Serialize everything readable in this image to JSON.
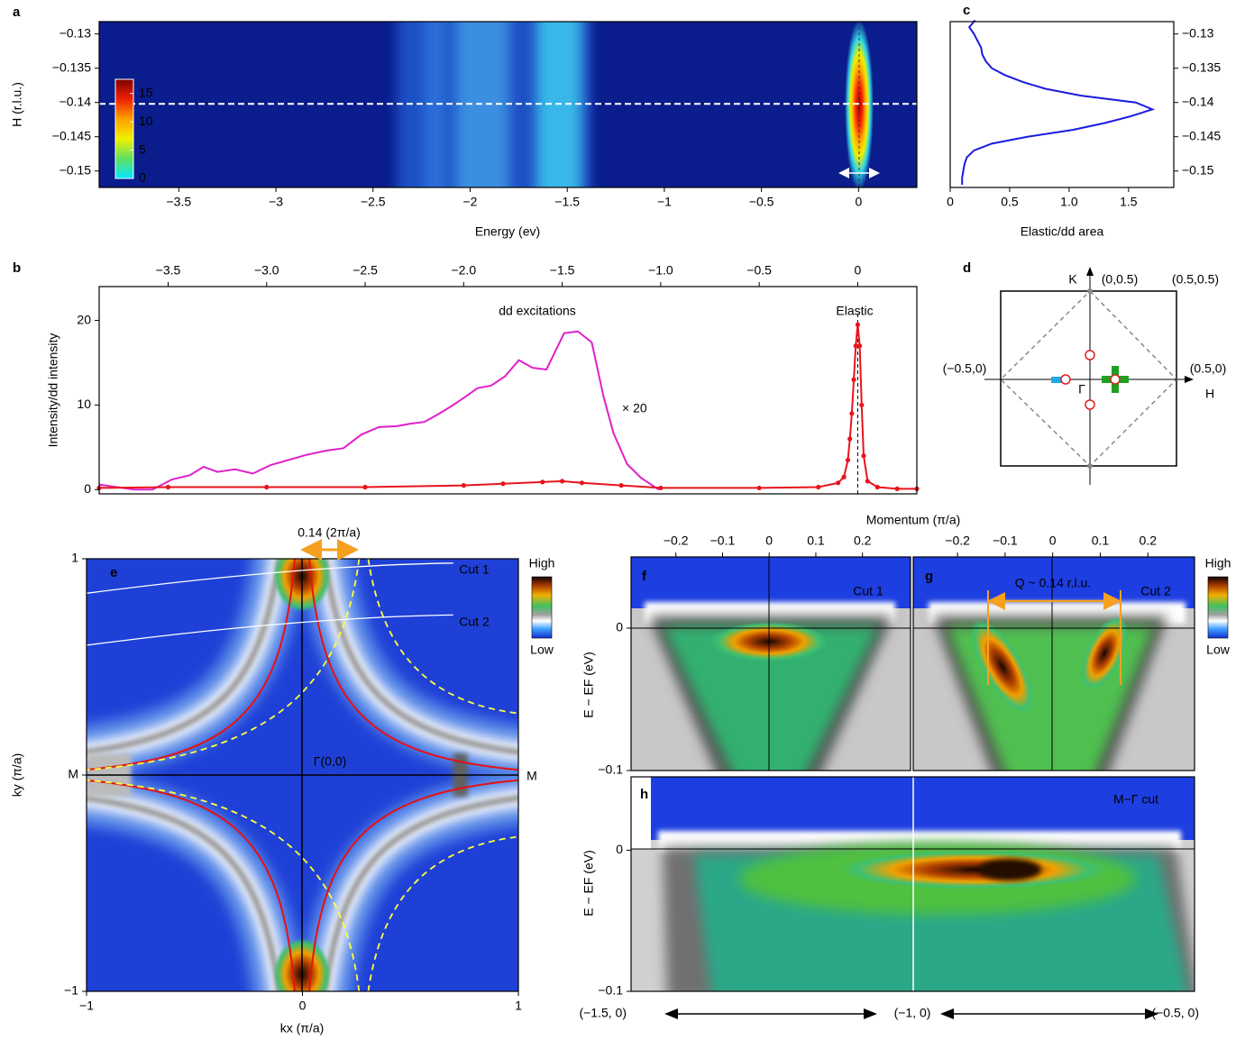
{
  "chart_data": [
    {
      "panel_label": "a",
      "type": "heatmap",
      "xlabel": "Energy (ev)",
      "ylabel": "H (r.l.u.)",
      "xlim": [
        -3.91,
        0.3
      ],
      "xticks": [
        {
          "value": -3.5,
          "label": "−3.5"
        },
        {
          "value": -3,
          "label": "−3"
        },
        {
          "value": -2.5,
          "label": "−2.5"
        },
        {
          "value": -2,
          "label": "−2"
        },
        {
          "value": -1.5,
          "label": "−1.5"
        },
        {
          "value": -1,
          "label": "−1"
        },
        {
          "value": -0.5,
          "label": "−0.5"
        },
        0
      ],
      "ylim": [
        -0.1524,
        -0.1282
      ],
      "yticks": [
        {
          "value": -0.13,
          "label": "−0.13"
        },
        {
          "value": -0.135,
          "label": "−0.135"
        },
        {
          "value": -0.14,
          "label": "−0.14"
        },
        {
          "value": -0.145,
          "label": "−0.145"
        },
        {
          "value": -0.15,
          "label": "−0.15"
        }
      ],
      "reference_line": -0.1402,
      "colorbar": {
        "lim": [
          0,
          17.5
        ],
        "ticks": [
          0,
          5,
          10,
          15
        ]
      }
    },
    {
      "panel_label": "b",
      "type": "line",
      "ylabel": "Intensity/dd intensity",
      "annotations": [
        "dd excitations",
        "Elastic"
      ],
      "xlim": [
        -3.85,
        0.3
      ],
      "xticks": [
        {
          "value": -3.5,
          "label": "−3.5"
        },
        {
          "value": -3,
          "label": "−3.0"
        },
        {
          "value": -2.5,
          "label": "−2.5"
        },
        {
          "value": -2,
          "label": "−2.0"
        },
        {
          "value": -1.5,
          "label": "−1.5"
        },
        {
          "value": -1,
          "label": "−1.0"
        },
        {
          "value": -0.5,
          "label": "−0.5"
        },
        0
      ],
      "ylim": [
        -0.5,
        24
      ],
      "yticks": [
        0,
        10,
        20
      ],
      "series": [
        {
          "name": "× 20",
          "color": "#e020c8",
          "x": [
            -3.85,
            -3.76,
            -3.67,
            -3.58,
            -3.48,
            -3.39,
            -3.32,
            -3.25,
            -3.16,
            -3.07,
            -2.98,
            -2.89,
            -2.8,
            -2.7,
            -2.61,
            -2.52,
            -2.43,
            -2.34,
            -2.27,
            -2.2,
            -2.13,
            -2.06,
            -1.99,
            -1.93,
            -1.86,
            -1.79,
            -1.72,
            -1.65,
            -1.58,
            -1.49,
            -1.42,
            -1.35,
            -1.29,
            -1.24,
            -1.17,
            -1.1,
            -1.01
          ],
          "values": [
            0.6,
            0.3,
            0,
            0,
            1.2,
            1.7,
            2.7,
            2.1,
            2.4,
            1.9,
            2.9,
            3.5,
            4.1,
            4.6,
            4.9,
            6.5,
            7.4,
            7.5,
            7.8,
            8,
            8.9,
            9.9,
            11,
            12,
            12.3,
            13.4,
            15.3,
            14.4,
            14.2,
            18.5,
            18.7,
            17.4,
            11,
            6.7,
            3,
            1.4,
            0
          ]
        },
        {
          "color": "#e8141c",
          "markers": true,
          "x": [
            -3.85,
            -3.5,
            -3,
            -2.5,
            -2,
            -1.8,
            -1.6,
            -1.5,
            -1.4,
            -1.2,
            -1,
            -0.5,
            -0.2,
            -0.1,
            -0.07,
            -0.05,
            -0.04,
            -0.03,
            -0.02,
            -0.01,
            0,
            0.01,
            0.02,
            0.03,
            0.05,
            0.1,
            0.2,
            0.3
          ],
          "values": [
            0.2,
            0.3,
            0.3,
            0.3,
            0.5,
            0.7,
            0.9,
            1,
            0.8,
            0.5,
            0.2,
            0.2,
            0.3,
            0.8,
            1.5,
            3.5,
            6,
            9,
            13,
            17,
            19.5,
            17,
            10,
            4,
            1,
            0.3,
            0.1,
            0.1
          ]
        }
      ]
    },
    {
      "panel_label": "c",
      "type": "line",
      "orientation": "horizontal",
      "xlabel": "Elastic/dd area",
      "color": "#1a1ae0",
      "xlim": [
        0,
        1.88
      ],
      "xticks": [
        0,
        0.5,
        {
          "value": 1,
          "label": "1.0"
        },
        1.5
      ],
      "ylim": [
        -0.1524,
        -0.1282
      ],
      "yticks": [
        {
          "value": -0.13,
          "label": "−0.13"
        },
        {
          "value": -0.135,
          "label": "−0.135"
        },
        {
          "value": -0.14,
          "label": "−0.14"
        },
        {
          "value": -0.145,
          "label": "−0.145"
        },
        {
          "value": -0.15,
          "label": "−0.15"
        }
      ],
      "y": [
        -0.152,
        -0.151,
        -0.15,
        -0.149,
        -0.148,
        -0.147,
        -0.146,
        -0.145,
        -0.144,
        -0.143,
        -0.142,
        -0.141,
        -0.14,
        -0.139,
        -0.138,
        -0.137,
        -0.136,
        -0.135,
        -0.134,
        -0.133,
        -0.132,
        -0.131,
        -0.13,
        -0.129,
        -0.128
      ],
      "values": [
        0.1,
        0.1,
        0.11,
        0.12,
        0.14,
        0.2,
        0.35,
        0.65,
        1.03,
        1.3,
        1.52,
        1.7,
        1.56,
        1.1,
        0.8,
        0.61,
        0.46,
        0.35,
        0.3,
        0.27,
        0.26,
        0.23,
        0.2,
        0.16,
        0.21
      ]
    },
    {
      "panel_label": "e",
      "type": "heatmap",
      "xlabel": "kx (π/a)",
      "ylabel": "ky (π/a)",
      "xlim": [
        -1,
        1
      ],
      "xticks": [
        {
          "value": -1,
          "label": "−1"
        },
        0,
        1
      ],
      "ylim": [
        -1,
        1
      ],
      "yticks": [
        {
          "value": -1,
          "label": "−1"
        },
        {
          "value": 0,
          "label": "M"
        },
        1
      ],
      "annotations": [
        "0.14 (2π/a)",
        "Cut 1",
        "Cut 2",
        "Γ(0,0)",
        "M"
      ],
      "colorbar_labels": [
        "High",
        "Low"
      ]
    },
    {
      "panel_label": "f",
      "type": "heatmap",
      "xlabel": "Momentum (π/a)",
      "ylabel": "E − EF (eV)",
      "xlim": [
        -0.296,
        0.303
      ],
      "xticks": [
        {
          "value": -0.2,
          "label": "−0.2"
        },
        {
          "value": -0.1,
          "label": "−0.1"
        },
        0,
        0.1,
        0.2
      ],
      "ylim": [
        -0.1,
        0.05
      ],
      "yticks": [
        0,
        {
          "value": -0.1,
          "label": "−0.1"
        }
      ],
      "annotations": [
        "Cut 1"
      ]
    },
    {
      "panel_label": "g",
      "type": "heatmap",
      "xlim": [
        -0.293,
        0.298
      ],
      "xticks": [
        {
          "value": -0.2,
          "label": "−0.2"
        },
        {
          "value": -0.1,
          "label": "−0.1"
        },
        0,
        0.1,
        0.2
      ],
      "annotations": [
        "Q ~ 0.14 r.l.u.",
        "Cut 2"
      ],
      "colorbar_labels": [
        "High",
        "Low"
      ]
    },
    {
      "panel_label": "h",
      "type": "heatmap",
      "ylabel": "E − EF (eV)",
      "ylim": [
        -0.1,
        0.052
      ],
      "yticks": [
        0,
        {
          "value": -0.1,
          "label": "−0.1"
        }
      ],
      "annotations": [
        "M−Γ cut"
      ],
      "categories": [
        "(−1.5, 0)",
        "(−1, 0)",
        "(−0.5, 0)"
      ]
    }
  ],
  "diagram": {
    "panel_label": "d",
    "labels": [
      "K",
      "H",
      "Γ",
      "(0,0.5)",
      "(0.5,0.5)",
      "(−0.5,0)",
      "(0.5,0)"
    ]
  }
}
